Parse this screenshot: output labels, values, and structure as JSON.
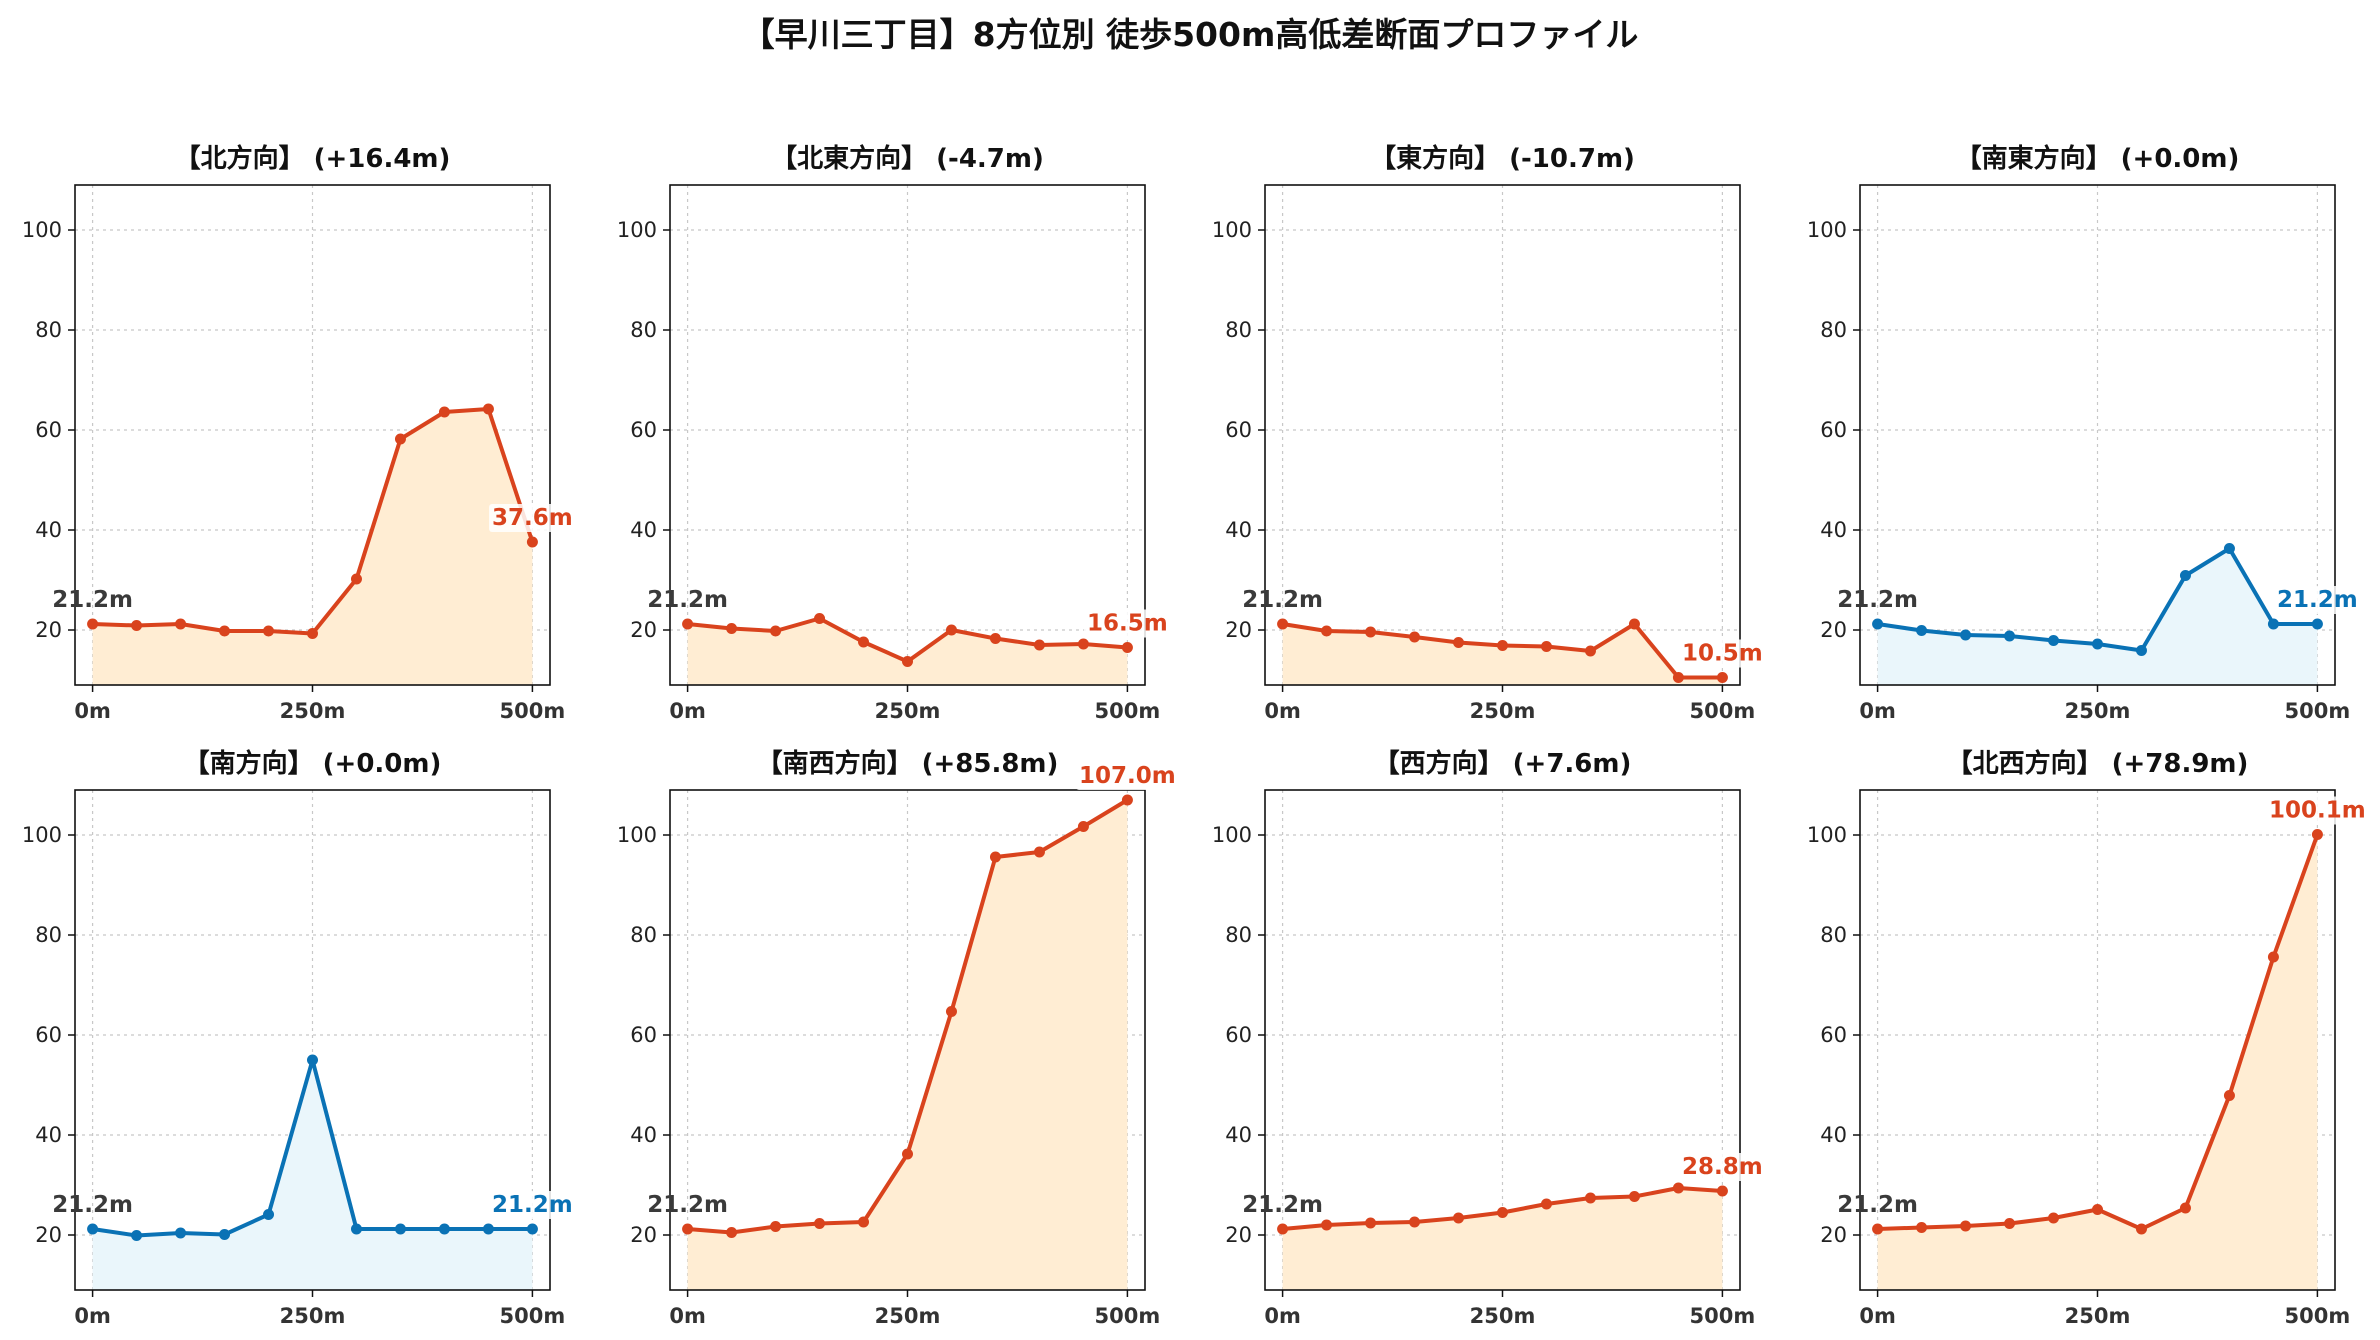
{
  "title": "【早川三丁目】8方位別 徒歩500m高低差断面プロファイル",
  "colors": {
    "up": "#d9431d",
    "up_fill": "#ffedd3",
    "flat": "#0a72b5",
    "flat_fill": "#eaf6fb"
  },
  "chart_data": [
    {
      "type": "area",
      "title": "【北方向】 (+16.4m)",
      "trend": "up",
      "x": [
        0,
        50,
        100,
        150,
        200,
        250,
        300,
        350,
        400,
        450,
        500
      ],
      "y": [
        21.2,
        20.9,
        21.2,
        19.8,
        19.8,
        19.3,
        30.2,
        58.2,
        63.6,
        64.2,
        37.6
      ],
      "start_label": "21.2m",
      "end_label": "37.6m",
      "xticks": [
        "0m",
        "250m",
        "500m"
      ],
      "yticks": [
        20,
        40,
        60,
        80,
        100
      ],
      "ylim": [
        9,
        109
      ],
      "xlim": [
        -20,
        520
      ],
      "grid": true
    },
    {
      "type": "area",
      "title": "【北東方向】 (-4.7m)",
      "trend": "up",
      "x": [
        0,
        50,
        100,
        150,
        200,
        250,
        300,
        350,
        400,
        450,
        500
      ],
      "y": [
        21.2,
        20.3,
        19.8,
        22.3,
        17.6,
        13.7,
        20.0,
        18.3,
        17.0,
        17.2,
        16.5
      ],
      "start_label": "21.2m",
      "end_label": "16.5m",
      "xticks": [
        "0m",
        "250m",
        "500m"
      ],
      "yticks": [
        20,
        40,
        60,
        80,
        100
      ],
      "ylim": [
        9,
        109
      ],
      "xlim": [
        -20,
        520
      ],
      "grid": true
    },
    {
      "type": "area",
      "title": "【東方向】 (-10.7m)",
      "trend": "up",
      "x": [
        0,
        50,
        100,
        150,
        200,
        250,
        300,
        350,
        400,
        450,
        500
      ],
      "y": [
        21.2,
        19.8,
        19.6,
        18.6,
        17.5,
        16.9,
        16.7,
        15.8,
        21.2,
        10.5,
        10.5
      ],
      "start_label": "21.2m",
      "end_label": "10.5m",
      "xticks": [
        "0m",
        "250m",
        "500m"
      ],
      "yticks": [
        20,
        40,
        60,
        80,
        100
      ],
      "ylim": [
        9,
        109
      ],
      "xlim": [
        -20,
        520
      ],
      "grid": true
    },
    {
      "type": "area",
      "title": "【南東方向】 (+0.0m)",
      "trend": "flat",
      "x": [
        0,
        50,
        100,
        150,
        200,
        250,
        300,
        350,
        400,
        450,
        500
      ],
      "y": [
        21.2,
        19.9,
        19.0,
        18.8,
        17.9,
        17.2,
        15.9,
        30.9,
        36.3,
        21.2,
        21.2
      ],
      "start_label": "21.2m",
      "end_label": "21.2m",
      "xticks": [
        "0m",
        "250m",
        "500m"
      ],
      "yticks": [
        20,
        40,
        60,
        80,
        100
      ],
      "ylim": [
        9,
        109
      ],
      "xlim": [
        -20,
        520
      ],
      "grid": true
    },
    {
      "type": "area",
      "title": "【南方向】 (+0.0m)",
      "trend": "flat",
      "x": [
        0,
        50,
        100,
        150,
        200,
        250,
        300,
        350,
        400,
        450,
        500
      ],
      "y": [
        21.2,
        19.9,
        20.4,
        20.1,
        24.1,
        55.0,
        21.2,
        21.2,
        21.2,
        21.2,
        21.2
      ],
      "start_label": "21.2m",
      "end_label": "21.2m",
      "xticks": [
        "0m",
        "250m",
        "500m"
      ],
      "yticks": [
        20,
        40,
        60,
        80,
        100
      ],
      "ylim": [
        9,
        109
      ],
      "xlim": [
        -20,
        520
      ],
      "grid": true
    },
    {
      "type": "area",
      "title": "【南西方向】 (+85.8m)",
      "trend": "up",
      "x": [
        0,
        50,
        100,
        150,
        200,
        250,
        300,
        350,
        400,
        450,
        500
      ],
      "y": [
        21.2,
        20.5,
        21.7,
        22.3,
        22.6,
        36.2,
        64.7,
        95.6,
        96.6,
        101.7,
        107.0
      ],
      "start_label": "21.2m",
      "end_label": "107.0m",
      "xticks": [
        "0m",
        "250m",
        "500m"
      ],
      "yticks": [
        20,
        40,
        60,
        80,
        100
      ],
      "ylim": [
        9,
        109
      ],
      "xlim": [
        -20,
        520
      ],
      "grid": true
    },
    {
      "type": "area",
      "title": "【西方向】 (+7.6m)",
      "trend": "up",
      "x": [
        0,
        50,
        100,
        150,
        200,
        250,
        300,
        350,
        400,
        450,
        500
      ],
      "y": [
        21.2,
        22.0,
        22.4,
        22.6,
        23.4,
        24.5,
        26.2,
        27.4,
        27.7,
        29.4,
        28.8
      ],
      "start_label": "21.2m",
      "end_label": "28.8m",
      "xticks": [
        "0m",
        "250m",
        "500m"
      ],
      "yticks": [
        20,
        40,
        60,
        80,
        100
      ],
      "ylim": [
        9,
        109
      ],
      "xlim": [
        -20,
        520
      ],
      "grid": true
    },
    {
      "type": "area",
      "title": "【北西方向】 (+78.9m)",
      "trend": "up",
      "x": [
        0,
        50,
        100,
        150,
        200,
        250,
        300,
        350,
        400,
        450,
        500
      ],
      "y": [
        21.2,
        21.5,
        21.8,
        22.3,
        23.4,
        25.1,
        21.2,
        25.4,
        47.9,
        75.6,
        100.1
      ],
      "start_label": "21.2m",
      "end_label": "100.1m",
      "xticks": [
        "0m",
        "250m",
        "500m"
      ],
      "yticks": [
        20,
        40,
        60,
        80,
        100
      ],
      "ylim": [
        9,
        109
      ],
      "xlim": [
        -20,
        520
      ],
      "grid": true
    }
  ]
}
